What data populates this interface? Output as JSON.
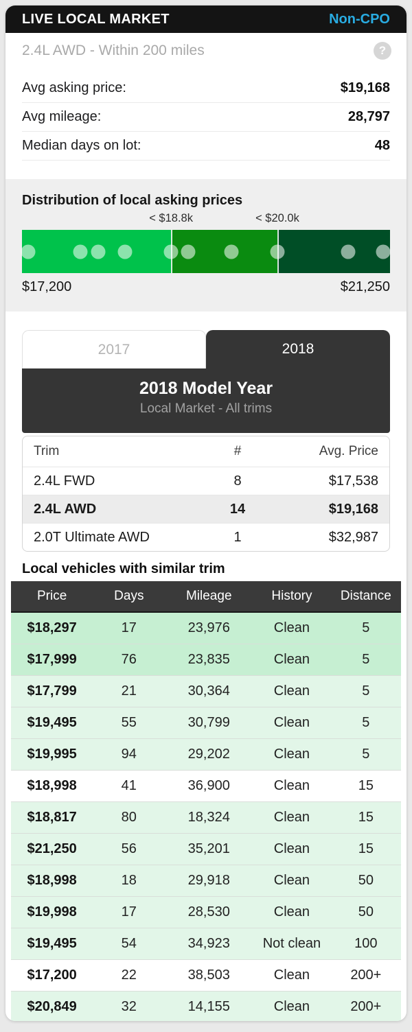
{
  "header": {
    "title": "LIVE LOCAL MARKET",
    "badge": "Non-CPO"
  },
  "subheader": {
    "text": "2.4L AWD - Within 200 miles",
    "help_glyph": "?"
  },
  "stats": [
    {
      "label": "Avg asking price:",
      "value": "$19,168"
    },
    {
      "label": "Avg mileage:",
      "value": "28,797"
    },
    {
      "label": "Median days on lot:",
      "value": "48"
    }
  ],
  "distribution": {
    "title": "Distribution of local asking prices",
    "min_label": "$17,200",
    "max_label": "$21,250",
    "thresholds": [
      {
        "label": "< $18.8k",
        "position_pct": 40.5
      },
      {
        "label": "< $20.0k",
        "position_pct": 69.4
      }
    ],
    "segments": [
      {
        "name": "low-price-band",
        "color": "#00c24b",
        "width_pct": 40.5
      },
      {
        "name": "mid-price-band",
        "color": "#0a8b10",
        "width_pct": 28.9
      },
      {
        "name": "high-price-band",
        "color": "#004e26",
        "width_pct": 30.6
      }
    ],
    "dot_color": "rgba(255,255,255,0.55)",
    "dots_pct": [
      1.7,
      15.9,
      20.7,
      28.0,
      40.5,
      45.1,
      56.9,
      69.4,
      88.6,
      98.1
    ]
  },
  "model_year": {
    "tabs": [
      {
        "label": "2017",
        "active": false
      },
      {
        "label": "2018",
        "active": true
      }
    ],
    "panel_title": "2018 Model Year",
    "panel_subtitle": "Local Market - All trims",
    "trim_table": {
      "headers": [
        "Trim",
        "#",
        "Avg. Price"
      ],
      "rows": [
        {
          "trim": "2.4L FWD",
          "count": "8",
          "avg_price": "$17,538",
          "highlight": false
        },
        {
          "trim": "2.4L AWD",
          "count": "14",
          "avg_price": "$19,168",
          "highlight": true
        },
        {
          "trim": "2.0T Ultimate AWD",
          "count": "1",
          "avg_price": "$32,987",
          "highlight": false
        }
      ]
    }
  },
  "vehicles": {
    "heading": "Local vehicles with similar trim",
    "headers": [
      "Price",
      "Days",
      "Mileage",
      "History",
      "Distance"
    ],
    "tint_colors": {
      "strong": "#c6efd2",
      "light": "#e2f6e8",
      "none": "#ffffff"
    },
    "rows": [
      {
        "price": "$18,297",
        "days": "17",
        "mileage": "23,976",
        "history": "Clean",
        "distance": "5",
        "tint": "strong"
      },
      {
        "price": "$17,999",
        "days": "76",
        "mileage": "23,835",
        "history": "Clean",
        "distance": "5",
        "tint": "strong"
      },
      {
        "price": "$17,799",
        "days": "21",
        "mileage": "30,364",
        "history": "Clean",
        "distance": "5",
        "tint": "light"
      },
      {
        "price": "$19,495",
        "days": "55",
        "mileage": "30,799",
        "history": "Clean",
        "distance": "5",
        "tint": "light"
      },
      {
        "price": "$19,995",
        "days": "94",
        "mileage": "29,202",
        "history": "Clean",
        "distance": "5",
        "tint": "light"
      },
      {
        "price": "$18,998",
        "days": "41",
        "mileage": "36,900",
        "history": "Clean",
        "distance": "15",
        "tint": "none"
      },
      {
        "price": "$18,817",
        "days": "80",
        "mileage": "18,324",
        "history": "Clean",
        "distance": "15",
        "tint": "light"
      },
      {
        "price": "$21,250",
        "days": "56",
        "mileage": "35,201",
        "history": "Clean",
        "distance": "15",
        "tint": "light"
      },
      {
        "price": "$18,998",
        "days": "18",
        "mileage": "29,918",
        "history": "Clean",
        "distance": "50",
        "tint": "light"
      },
      {
        "price": "$19,998",
        "days": "17",
        "mileage": "28,530",
        "history": "Clean",
        "distance": "50",
        "tint": "light"
      },
      {
        "price": "$19,495",
        "days": "54",
        "mileage": "34,923",
        "history": "Not clean",
        "distance": "100",
        "tint": "light"
      },
      {
        "price": "$17,200",
        "days": "22",
        "mileage": "38,503",
        "history": "Clean",
        "distance": "200+",
        "tint": "none"
      },
      {
        "price": "$20,849",
        "days": "32",
        "mileage": "14,155",
        "history": "Clean",
        "distance": "200+",
        "tint": "light"
      }
    ]
  }
}
